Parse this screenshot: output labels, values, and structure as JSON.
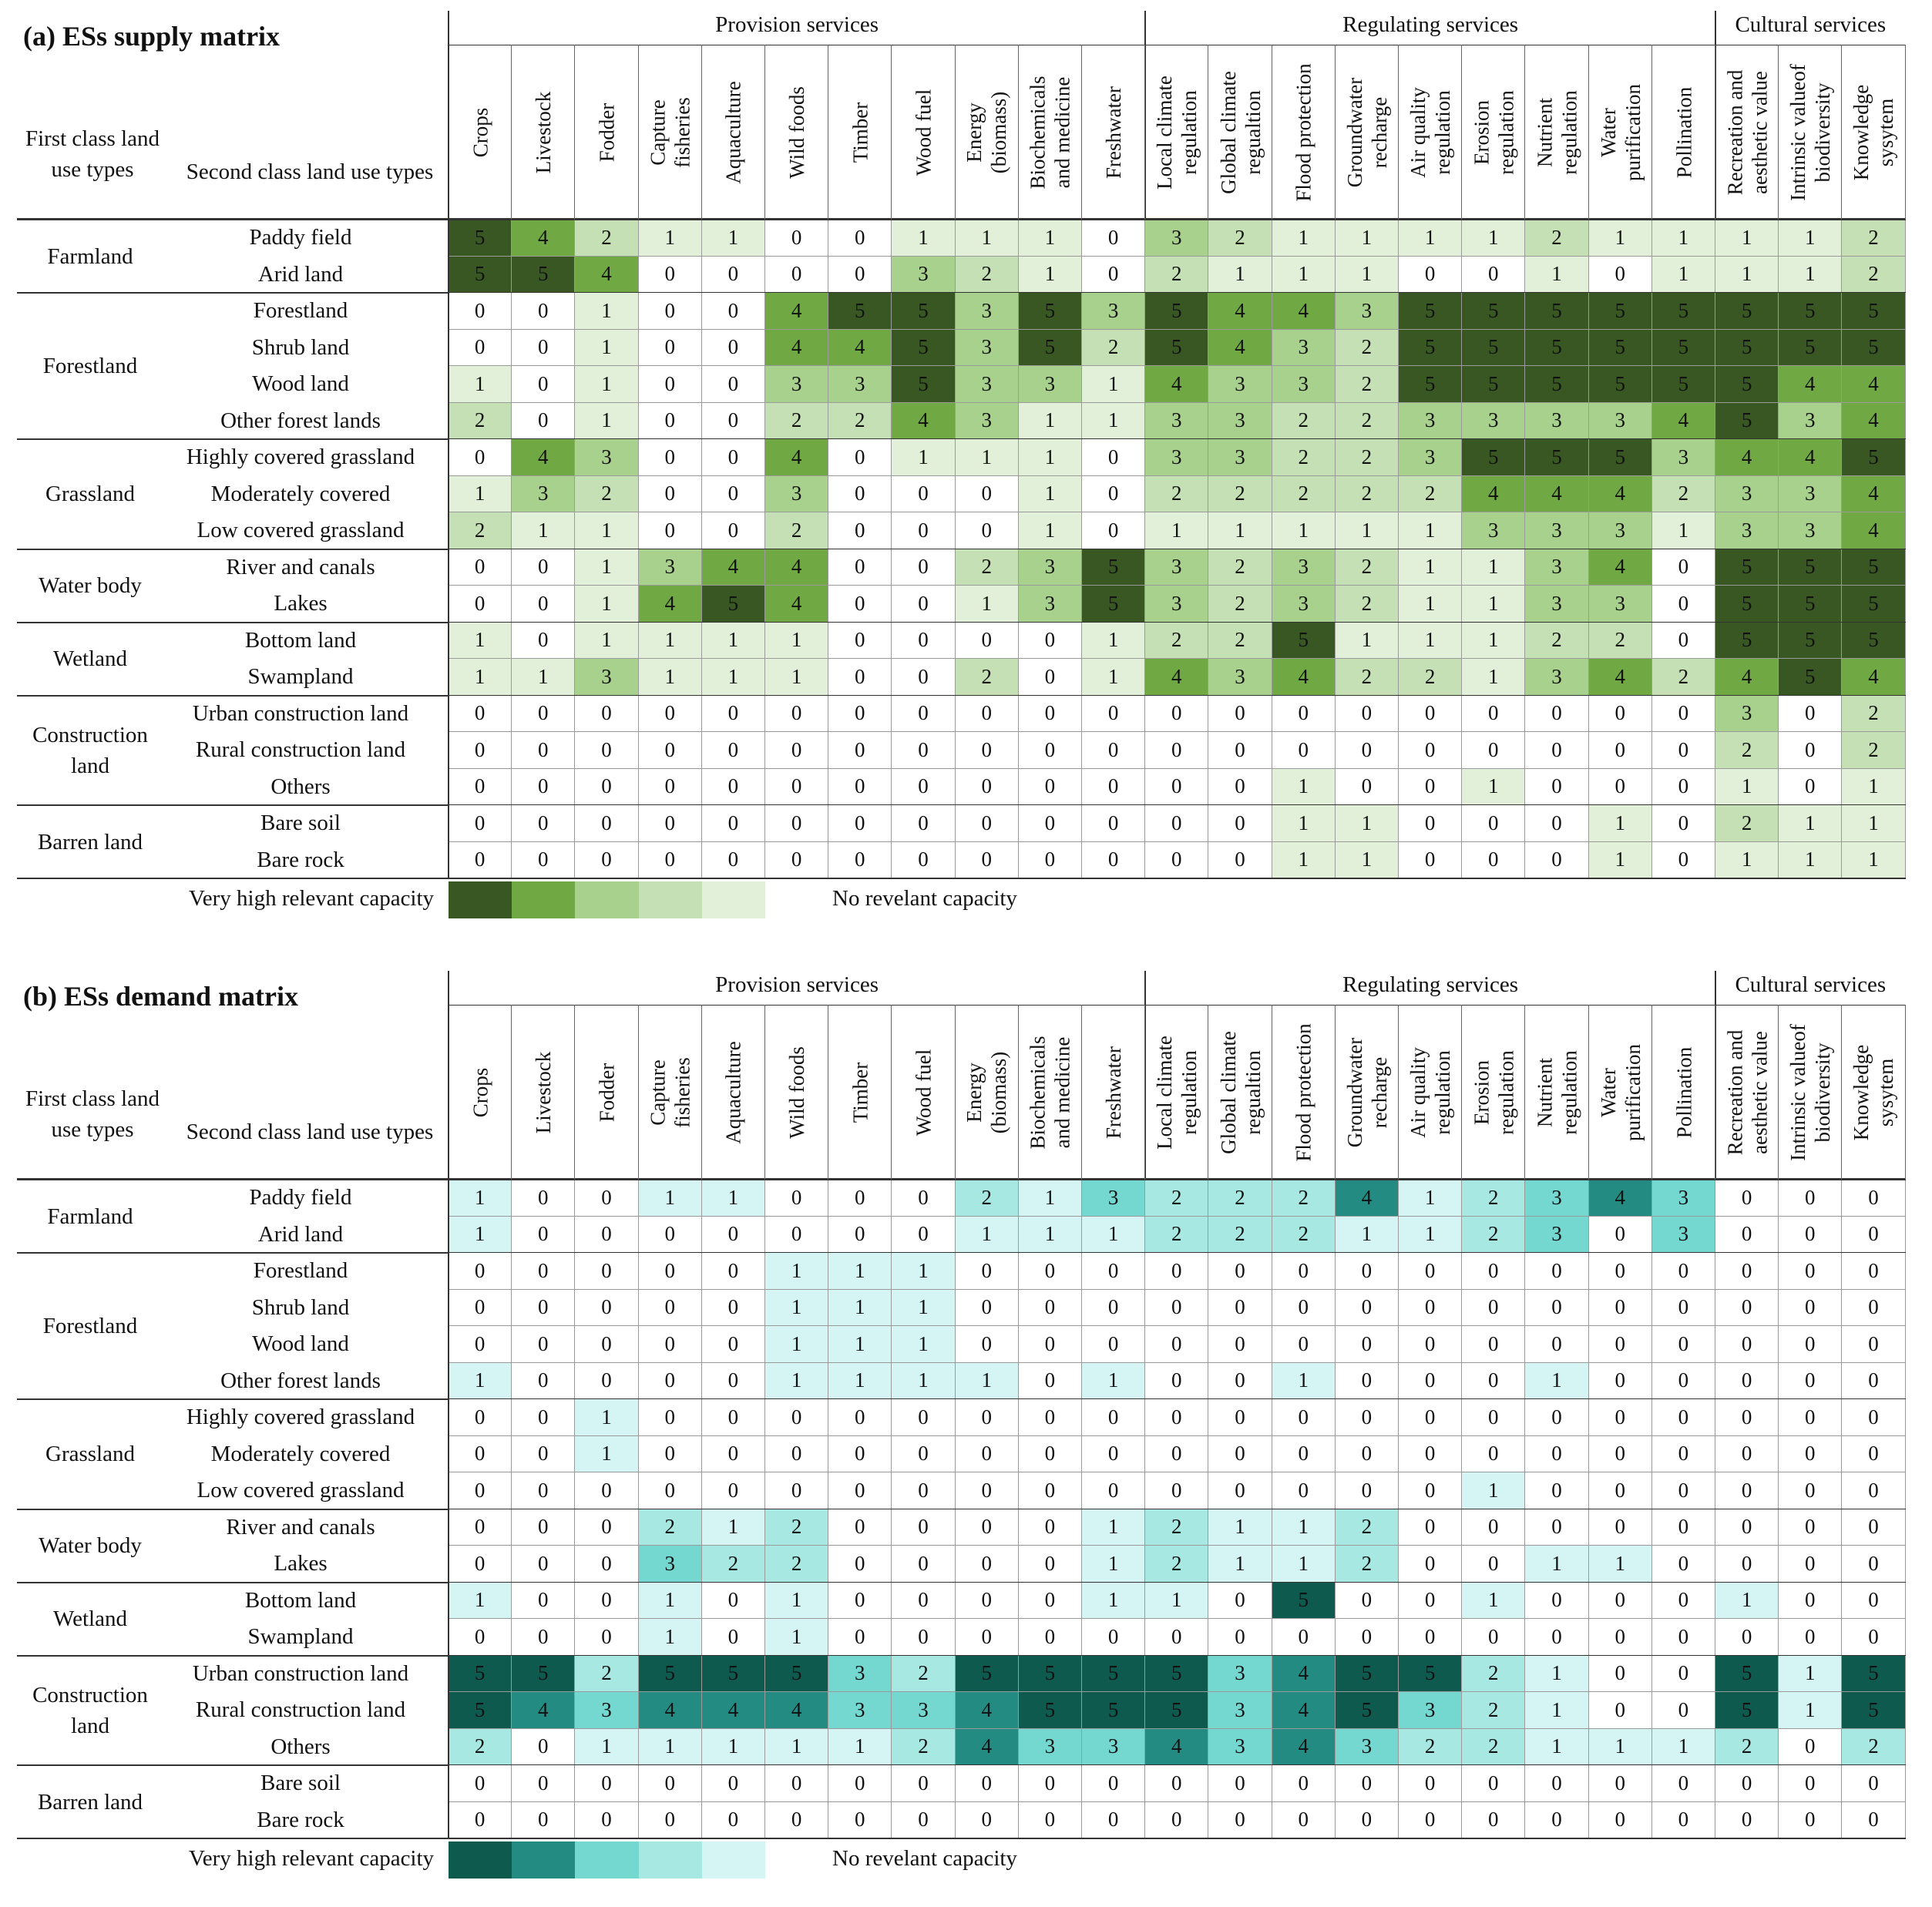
{
  "column_groups": [
    {
      "label": "Provision services",
      "span": 11
    },
    {
      "label": "Regulating services",
      "span": 9
    },
    {
      "label": "Cultural services",
      "span": 3
    }
  ],
  "columns": [
    "Crops",
    "Livestock",
    "Fodder",
    "Capture\nfisheries",
    "Aquaculture",
    "Wild foods",
    "Timber",
    "Wood fuel",
    "Energy\n(biomass)",
    "Biochemicals\nand medicine",
    "Freshwater",
    "Local climate\nregulation",
    "Global climate\nregualtion",
    "Flood protection",
    "Groundwater\nrecharge",
    "Air quality\nregulation",
    "Erosion\nregulation",
    "Nutrient\nregulation",
    "Water\npurification",
    "Pollination",
    "Recreation and\naesthetic value",
    "Intrinsic valueof\nbiodiversity",
    "Knowledge\nsysytem"
  ],
  "header_labels": {
    "first_class": "First class land\nuse types",
    "second_class": "Second class land use types"
  },
  "land_groups": [
    {
      "name": "Farmland",
      "rows": [
        "Paddy field",
        "Arid land"
      ]
    },
    {
      "name": "Forestland",
      "rows": [
        "Forestland",
        "Shrub land",
        "Wood land",
        "Other forest lands"
      ]
    },
    {
      "name": "Grassland",
      "rows": [
        "Highly covered grassland",
        "Moderately covered",
        "Low covered grassland"
      ]
    },
    {
      "name": "Water body",
      "rows": [
        "River and canals",
        "Lakes"
      ]
    },
    {
      "name": "Wetland",
      "rows": [
        "Bottom land",
        "Swampland"
      ]
    },
    {
      "name": "Construction\nland",
      "rows": [
        "Urban construction land",
        "Rural construction land",
        "Others"
      ]
    },
    {
      "name": "Barren land",
      "rows": [
        "Bare soil",
        "Bare rock"
      ]
    }
  ],
  "legend": {
    "high_label": "Very high relevant capacity",
    "none_label": "No revelant capacity"
  },
  "chart_data": [
    {
      "type": "heatmap",
      "title": "(a) ESs supply matrix",
      "value_range": [
        0,
        5
      ],
      "palette": {
        "0": "#ffffff",
        "1": "#e2f0d9",
        "2": "#c5e0b4",
        "3": "#a9d18e",
        "4": "#70a843",
        "5": "#385723"
      },
      "text_color_dark": "#111111",
      "values": [
        [
          5,
          4,
          2,
          1,
          1,
          0,
          0,
          1,
          1,
          1,
          0,
          3,
          2,
          1,
          1,
          1,
          1,
          2,
          1,
          1,
          1,
          1,
          2
        ],
        [
          5,
          5,
          4,
          0,
          0,
          0,
          0,
          3,
          2,
          1,
          0,
          2,
          1,
          1,
          1,
          0,
          0,
          1,
          0,
          1,
          1,
          1,
          2
        ],
        [
          0,
          0,
          1,
          0,
          0,
          4,
          5,
          5,
          3,
          5,
          3,
          5,
          4,
          4,
          3,
          5,
          5,
          5,
          5,
          5,
          5,
          5,
          5
        ],
        [
          0,
          0,
          1,
          0,
          0,
          4,
          4,
          5,
          3,
          5,
          2,
          5,
          4,
          3,
          2,
          5,
          5,
          5,
          5,
          5,
          5,
          5,
          5
        ],
        [
          1,
          0,
          1,
          0,
          0,
          3,
          3,
          5,
          3,
          3,
          1,
          4,
          3,
          3,
          2,
          5,
          5,
          5,
          5,
          5,
          5,
          4,
          4
        ],
        [
          2,
          0,
          1,
          0,
          0,
          2,
          2,
          4,
          3,
          1,
          1,
          3,
          3,
          2,
          2,
          3,
          3,
          3,
          3,
          4,
          5,
          3,
          4
        ],
        [
          0,
          4,
          3,
          0,
          0,
          4,
          0,
          1,
          1,
          1,
          0,
          3,
          3,
          2,
          2,
          3,
          5,
          5,
          5,
          3,
          4,
          4,
          5
        ],
        [
          1,
          3,
          2,
          0,
          0,
          3,
          0,
          0,
          0,
          1,
          0,
          2,
          2,
          2,
          2,
          2,
          4,
          4,
          4,
          2,
          3,
          3,
          4
        ],
        [
          2,
          1,
          1,
          0,
          0,
          2,
          0,
          0,
          0,
          1,
          0,
          1,
          1,
          1,
          1,
          1,
          3,
          3,
          3,
          1,
          3,
          3,
          4
        ],
        [
          0,
          0,
          1,
          3,
          4,
          4,
          0,
          0,
          2,
          3,
          5,
          3,
          2,
          3,
          2,
          1,
          1,
          3,
          4,
          0,
          5,
          5,
          5
        ],
        [
          0,
          0,
          1,
          4,
          5,
          4,
          0,
          0,
          1,
          3,
          5,
          3,
          2,
          3,
          2,
          1,
          1,
          3,
          3,
          0,
          5,
          5,
          5
        ],
        [
          1,
          0,
          1,
          1,
          1,
          1,
          0,
          0,
          0,
          0,
          1,
          2,
          2,
          5,
          1,
          1,
          1,
          2,
          2,
          0,
          5,
          5,
          5
        ],
        [
          1,
          1,
          3,
          1,
          1,
          1,
          0,
          0,
          2,
          0,
          1,
          4,
          3,
          4,
          2,
          2,
          1,
          3,
          4,
          2,
          4,
          5,
          4
        ],
        [
          0,
          0,
          0,
          0,
          0,
          0,
          0,
          0,
          0,
          0,
          0,
          0,
          0,
          0,
          0,
          0,
          0,
          0,
          0,
          0,
          3,
          0,
          2
        ],
        [
          0,
          0,
          0,
          0,
          0,
          0,
          0,
          0,
          0,
          0,
          0,
          0,
          0,
          0,
          0,
          0,
          0,
          0,
          0,
          0,
          2,
          0,
          2
        ],
        [
          0,
          0,
          0,
          0,
          0,
          0,
          0,
          0,
          0,
          0,
          0,
          0,
          0,
          1,
          0,
          0,
          1,
          0,
          0,
          0,
          1,
          0,
          1
        ],
        [
          0,
          0,
          0,
          0,
          0,
          0,
          0,
          0,
          0,
          0,
          0,
          0,
          0,
          1,
          1,
          0,
          0,
          0,
          1,
          0,
          2,
          1,
          1
        ],
        [
          0,
          0,
          0,
          0,
          0,
          0,
          0,
          0,
          0,
          0,
          0,
          0,
          0,
          1,
          1,
          0,
          0,
          0,
          1,
          0,
          1,
          1,
          1
        ]
      ]
    },
    {
      "type": "heatmap",
      "title": "(b) ESs demand matrix",
      "value_range": [
        0,
        5
      ],
      "palette": {
        "0": "#ffffff",
        "1": "#d5f5f5",
        "2": "#a8e8e2",
        "3": "#74d7d0",
        "4": "#238b82",
        "5": "#0e5a4f"
      },
      "text_color_dark": "#111111",
      "values": [
        [
          1,
          0,
          0,
          1,
          1,
          0,
          0,
          0,
          2,
          1,
          3,
          2,
          2,
          2,
          4,
          1,
          2,
          3,
          4,
          3,
          0,
          0,
          0
        ],
        [
          1,
          0,
          0,
          0,
          0,
          0,
          0,
          0,
          1,
          1,
          1,
          2,
          2,
          2,
          1,
          1,
          2,
          3,
          0,
          3,
          0,
          0,
          0
        ],
        [
          0,
          0,
          0,
          0,
          0,
          1,
          1,
          1,
          0,
          0,
          0,
          0,
          0,
          0,
          0,
          0,
          0,
          0,
          0,
          0,
          0,
          0,
          0
        ],
        [
          0,
          0,
          0,
          0,
          0,
          1,
          1,
          1,
          0,
          0,
          0,
          0,
          0,
          0,
          0,
          0,
          0,
          0,
          0,
          0,
          0,
          0,
          0
        ],
        [
          0,
          0,
          0,
          0,
          0,
          1,
          1,
          1,
          0,
          0,
          0,
          0,
          0,
          0,
          0,
          0,
          0,
          0,
          0,
          0,
          0,
          0,
          0
        ],
        [
          1,
          0,
          0,
          0,
          0,
          1,
          1,
          1,
          1,
          0,
          1,
          0,
          0,
          1,
          0,
          0,
          0,
          1,
          0,
          0,
          0,
          0,
          0
        ],
        [
          0,
          0,
          1,
          0,
          0,
          0,
          0,
          0,
          0,
          0,
          0,
          0,
          0,
          0,
          0,
          0,
          0,
          0,
          0,
          0,
          0,
          0,
          0
        ],
        [
          0,
          0,
          1,
          0,
          0,
          0,
          0,
          0,
          0,
          0,
          0,
          0,
          0,
          0,
          0,
          0,
          0,
          0,
          0,
          0,
          0,
          0,
          0
        ],
        [
          0,
          0,
          0,
          0,
          0,
          0,
          0,
          0,
          0,
          0,
          0,
          0,
          0,
          0,
          0,
          0,
          1,
          0,
          0,
          0,
          0,
          0,
          0
        ],
        [
          0,
          0,
          0,
          2,
          1,
          2,
          0,
          0,
          0,
          0,
          1,
          2,
          1,
          1,
          2,
          0,
          0,
          0,
          0,
          0,
          0,
          0,
          0
        ],
        [
          0,
          0,
          0,
          3,
          2,
          2,
          0,
          0,
          0,
          0,
          1,
          2,
          1,
          1,
          2,
          0,
          0,
          1,
          1,
          0,
          0,
          0,
          0
        ],
        [
          1,
          0,
          0,
          1,
          0,
          1,
          0,
          0,
          0,
          0,
          1,
          1,
          0,
          5,
          0,
          0,
          1,
          0,
          0,
          0,
          1,
          0,
          0
        ],
        [
          0,
          0,
          0,
          1,
          0,
          1,
          0,
          0,
          0,
          0,
          0,
          0,
          0,
          0,
          0,
          0,
          0,
          0,
          0,
          0,
          0,
          0,
          0
        ],
        [
          5,
          5,
          2,
          5,
          5,
          5,
          3,
          2,
          5,
          5,
          5,
          5,
          3,
          4,
          5,
          5,
          2,
          1,
          0,
          0,
          5,
          1,
          5
        ],
        [
          5,
          4,
          3,
          4,
          4,
          4,
          3,
          3,
          4,
          5,
          5,
          5,
          3,
          4,
          5,
          3,
          2,
          1,
          0,
          0,
          5,
          1,
          5
        ],
        [
          2,
          0,
          1,
          1,
          1,
          1,
          1,
          2,
          4,
          3,
          3,
          4,
          3,
          4,
          3,
          2,
          2,
          1,
          1,
          1,
          2,
          0,
          2
        ],
        [
          0,
          0,
          0,
          0,
          0,
          0,
          0,
          0,
          0,
          0,
          0,
          0,
          0,
          0,
          0,
          0,
          0,
          0,
          0,
          0,
          0,
          0,
          0
        ],
        [
          0,
          0,
          0,
          0,
          0,
          0,
          0,
          0,
          0,
          0,
          0,
          0,
          0,
          0,
          0,
          0,
          0,
          0,
          0,
          0,
          0,
          0,
          0
        ]
      ]
    }
  ]
}
